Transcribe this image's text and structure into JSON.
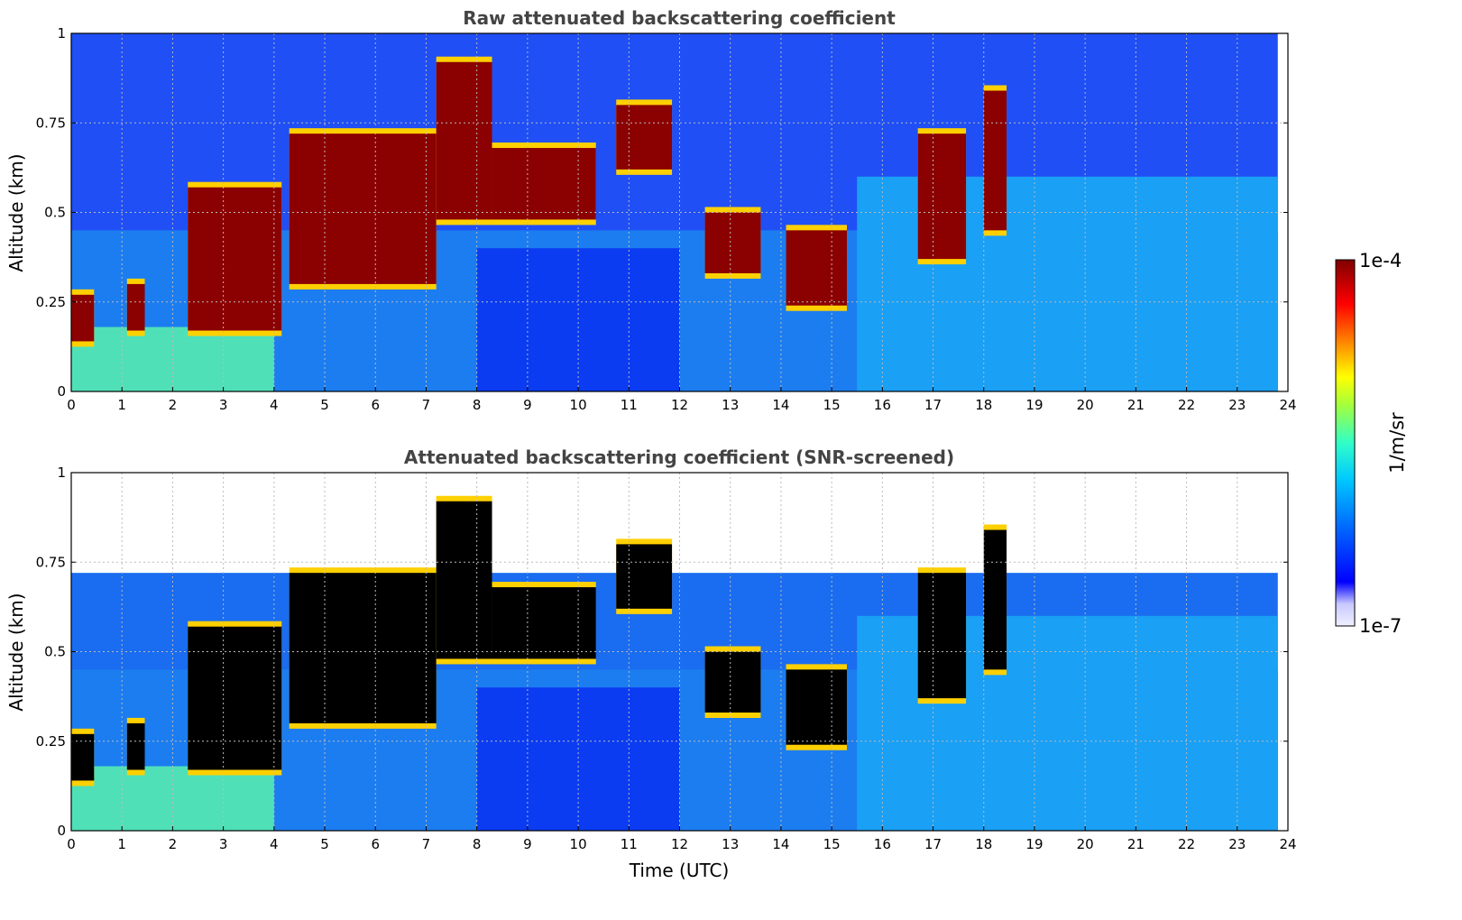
{
  "chart_data": [
    {
      "type": "heatmap",
      "title": "Raw attenuated backscattering coefficient",
      "xlabel": "",
      "ylabel": "Altitude (km)",
      "xlim": [
        0,
        24
      ],
      "ylim": [
        0,
        1
      ],
      "x_ticks": [
        "0",
        "1",
        "2",
        "3",
        "4",
        "5",
        "6",
        "7",
        "8",
        "9",
        "10",
        "11",
        "12",
        "13",
        "14",
        "15",
        "16",
        "17",
        "18",
        "19",
        "20",
        "21",
        "22",
        "23",
        "24"
      ],
      "y_ticks": [
        "0",
        "0.25",
        "0.5",
        "0.75",
        "1"
      ],
      "grid": true,
      "screened": false,
      "layers": [
        {
          "t_start": 0.0,
          "t_end": 0.45,
          "alt_top": 0.27,
          "alt_bottom": 0.14
        },
        {
          "t_start": 1.1,
          "t_end": 1.45,
          "alt_top": 0.3,
          "alt_bottom": 0.17
        },
        {
          "t_start": 2.3,
          "t_end": 4.15,
          "alt_top": 0.57,
          "alt_bottom": 0.17
        },
        {
          "t_start": 4.3,
          "t_end": 7.2,
          "alt_top": 0.72,
          "alt_bottom": 0.3
        },
        {
          "t_start": 7.2,
          "t_end": 8.3,
          "alt_top": 0.92,
          "alt_bottom": 0.48
        },
        {
          "t_start": 8.3,
          "t_end": 10.35,
          "alt_top": 0.68,
          "alt_bottom": 0.48
        },
        {
          "t_start": 10.75,
          "t_end": 11.85,
          "alt_top": 0.8,
          "alt_bottom": 0.62
        },
        {
          "t_start": 12.5,
          "t_end": 13.6,
          "alt_top": 0.5,
          "alt_bottom": 0.33
        },
        {
          "t_start": 14.1,
          "t_end": 15.3,
          "alt_top": 0.45,
          "alt_bottom": 0.24
        },
        {
          "t_start": 16.7,
          "t_end": 17.65,
          "alt_top": 0.72,
          "alt_bottom": 0.37
        },
        {
          "t_start": 18.0,
          "t_end": 18.45,
          "alt_top": 0.84,
          "alt_bottom": 0.45
        }
      ],
      "colorbar": {
        "min": "1e-7",
        "max": "1e-4",
        "label": "1/m/sr",
        "scale": "log"
      }
    },
    {
      "type": "heatmap",
      "title": "Attenuated backscattering coefficient (SNR-screened)",
      "xlabel": "Time (UTC)",
      "ylabel": "Altitude (km)",
      "xlim": [
        0,
        24
      ],
      "ylim": [
        0,
        1
      ],
      "x_ticks": [
        "0",
        "1",
        "2",
        "3",
        "4",
        "5",
        "6",
        "7",
        "8",
        "9",
        "10",
        "11",
        "12",
        "13",
        "14",
        "15",
        "16",
        "17",
        "18",
        "19",
        "20",
        "21",
        "22",
        "23",
        "24"
      ],
      "y_ticks": [
        "0",
        "0.25",
        "0.5",
        "0.75",
        "1"
      ],
      "grid": true,
      "screened": true,
      "layers": [
        {
          "t_start": 0.0,
          "t_end": 0.45,
          "alt_top": 0.27,
          "alt_bottom": 0.14
        },
        {
          "t_start": 1.1,
          "t_end": 1.45,
          "alt_top": 0.3,
          "alt_bottom": 0.17
        },
        {
          "t_start": 2.3,
          "t_end": 4.15,
          "alt_top": 0.57,
          "alt_bottom": 0.17
        },
        {
          "t_start": 4.3,
          "t_end": 7.2,
          "alt_top": 0.72,
          "alt_bottom": 0.3
        },
        {
          "t_start": 7.2,
          "t_end": 8.3,
          "alt_top": 0.92,
          "alt_bottom": 0.48
        },
        {
          "t_start": 8.3,
          "t_end": 10.35,
          "alt_top": 0.68,
          "alt_bottom": 0.48
        },
        {
          "t_start": 10.75,
          "t_end": 11.85,
          "alt_top": 0.8,
          "alt_bottom": 0.62
        },
        {
          "t_start": 12.5,
          "t_end": 13.6,
          "alt_top": 0.5,
          "alt_bottom": 0.33
        },
        {
          "t_start": 14.1,
          "t_end": 15.3,
          "alt_top": 0.45,
          "alt_bottom": 0.24
        },
        {
          "t_start": 16.7,
          "t_end": 17.65,
          "alt_top": 0.72,
          "alt_bottom": 0.37
        },
        {
          "t_start": 18.0,
          "t_end": 18.45,
          "alt_top": 0.84,
          "alt_bottom": 0.45
        }
      ],
      "colorbar": {
        "min": "1e-7",
        "max": "1e-4",
        "label": "1/m/sr",
        "scale": "log"
      }
    }
  ],
  "colorbar": {
    "max_label": "1e-4",
    "min_label": "1e-7",
    "unit_label": "1/m/sr",
    "colormap": [
      "#f0f0ff",
      "#c8c8ff",
      "#0000ff",
      "#0070ff",
      "#00c8ff",
      "#30ffc8",
      "#a0ff40",
      "#ffff00",
      "#ff8000",
      "#ff0000",
      "#800000"
    ]
  }
}
